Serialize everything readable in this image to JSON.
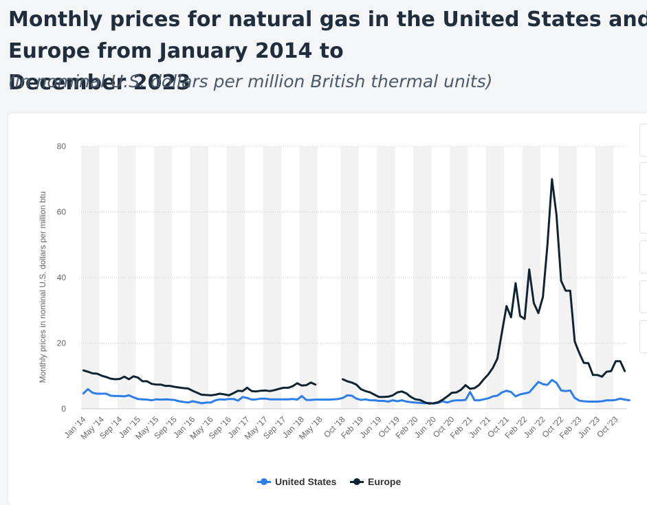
{
  "header": {
    "title": "Monthly prices for natural gas in the United States and Europe from January 2014 to\nDecember 2023",
    "subtitle": "(in nominal U.S. dollars per million British thermal units)"
  },
  "colors": {
    "us": "#2d7ee8",
    "europe": "#0e2433",
    "band": "#f2f2f2",
    "grid": "#cccccc",
    "text": "#666666"
  },
  "chart_data": {
    "type": "line",
    "title": "Monthly prices for natural gas in the United States and Europe from January 2014 to December 2023",
    "ylabel": "Monthly prices in nominal U.S. dollars per million btu",
    "xlabel": "",
    "ylim": [
      0,
      80
    ],
    "yticks": [
      0,
      20,
      40,
      60,
      80
    ],
    "x_start": "2014-01",
    "months": 120,
    "xtick_labels": [
      "Jan '14",
      "May '14",
      "Sep '14",
      "Jan '15",
      "May '15",
      "Sep '15",
      "Jan '16",
      "May '16",
      "Sep '16",
      "Jan '17",
      "May '17",
      "Sep '17",
      "Jan '18",
      "May '18",
      "Oct '18",
      "Feb '19",
      "Jun '19",
      "Oct '19",
      "Feb '20",
      "Jun '20",
      "Oct '20",
      "Feb '21",
      "Jun '21",
      "Oct '21",
      "Feb '22",
      "Jun '22",
      "Oct '22",
      "Feb '23",
      "Jun '23",
      "Oct '23"
    ],
    "xtick_index": [
      0,
      4,
      8,
      12,
      16,
      20,
      24,
      28,
      32,
      36,
      40,
      44,
      48,
      52,
      57,
      61,
      65,
      69,
      73,
      77,
      81,
      85,
      89,
      93,
      97,
      101,
      105,
      109,
      113,
      117
    ],
    "legend_position": "bottom-center",
    "series": [
      {
        "name": "United States",
        "values": [
          4.7,
          6.0,
          4.9,
          4.6,
          4.6,
          4.6,
          4.0,
          3.9,
          3.9,
          3.8,
          4.1,
          3.5,
          3.0,
          2.9,
          2.8,
          2.6,
          2.9,
          2.8,
          2.9,
          2.8,
          2.7,
          2.3,
          2.1,
          1.9,
          2.3,
          2.0,
          1.7,
          1.9,
          1.9,
          2.6,
          2.9,
          2.8,
          3.0,
          3.0,
          2.5,
          3.6,
          3.3,
          2.8,
          2.9,
          3.1,
          3.1,
          2.9,
          2.9,
          2.9,
          2.9,
          2.9,
          3.0,
          2.8,
          3.9,
          2.7,
          2.7,
          2.8,
          2.8,
          2.8,
          2.8,
          2.9,
          3.0,
          3.3,
          4.1,
          4.0,
          3.1,
          2.7,
          2.9,
          2.6,
          2.6,
          2.4,
          2.4,
          2.2,
          2.6,
          2.3,
          2.6,
          2.2,
          2.0,
          1.9,
          1.8,
          1.7,
          1.8,
          1.6,
          1.8,
          2.3,
          1.9,
          2.4,
          2.6,
          2.6,
          2.7,
          5.1,
          2.6,
          2.6,
          2.9,
          3.2,
          3.8,
          4.0,
          5.0,
          5.5,
          5.1,
          3.8,
          4.4,
          4.7,
          5.0,
          6.6,
          8.2,
          7.5,
          7.3,
          8.8,
          7.9,
          5.6,
          5.4,
          5.6,
          3.3,
          2.5,
          2.3,
          2.2,
          2.2,
          2.2,
          2.3,
          2.6,
          2.6,
          2.7,
          3.1,
          2.8,
          2.6
        ]
      },
      {
        "name": "Europe",
        "values": [
          11.7,
          11.3,
          10.8,
          10.7,
          10.1,
          9.7,
          9.2,
          9.0,
          9.1,
          9.8,
          9.0,
          9.9,
          9.5,
          8.4,
          8.4,
          7.6,
          7.4,
          7.4,
          7.0,
          7.0,
          6.7,
          6.5,
          6.3,
          6.2,
          5.5,
          4.9,
          4.3,
          4.2,
          4.1,
          4.3,
          4.6,
          4.4,
          4.1,
          4.8,
          5.5,
          5.4,
          6.4,
          5.4,
          5.3,
          5.5,
          5.6,
          5.4,
          5.7,
          6.1,
          6.4,
          6.4,
          6.9,
          7.8,
          7.1,
          7.2,
          8.0,
          7.4,
          null,
          null,
          null,
          null,
          null,
          9.0,
          8.4,
          8.0,
          7.4,
          6.0,
          5.4,
          5.0,
          4.3,
          3.6,
          3.6,
          3.7,
          4.1,
          5.0,
          5.3,
          4.7,
          3.6,
          2.9,
          2.7,
          2.0,
          1.6,
          1.7,
          2.0,
          2.8,
          3.8,
          4.9,
          5.0,
          5.8,
          7.2,
          6.1,
          6.3,
          7.3,
          9.0,
          10.5,
          12.5,
          15.3,
          23.3,
          31.3,
          27.9,
          38.3,
          28.3,
          27.4,
          42.5,
          32.2,
          29.2,
          34.1,
          50.0,
          70.0,
          59.0,
          39.0,
          36.0,
          36.0,
          20.5,
          17.0,
          14.0,
          13.9,
          10.3,
          10.3,
          9.8,
          11.3,
          11.5,
          14.5,
          14.5,
          11.5
        ]
      }
    ]
  }
}
